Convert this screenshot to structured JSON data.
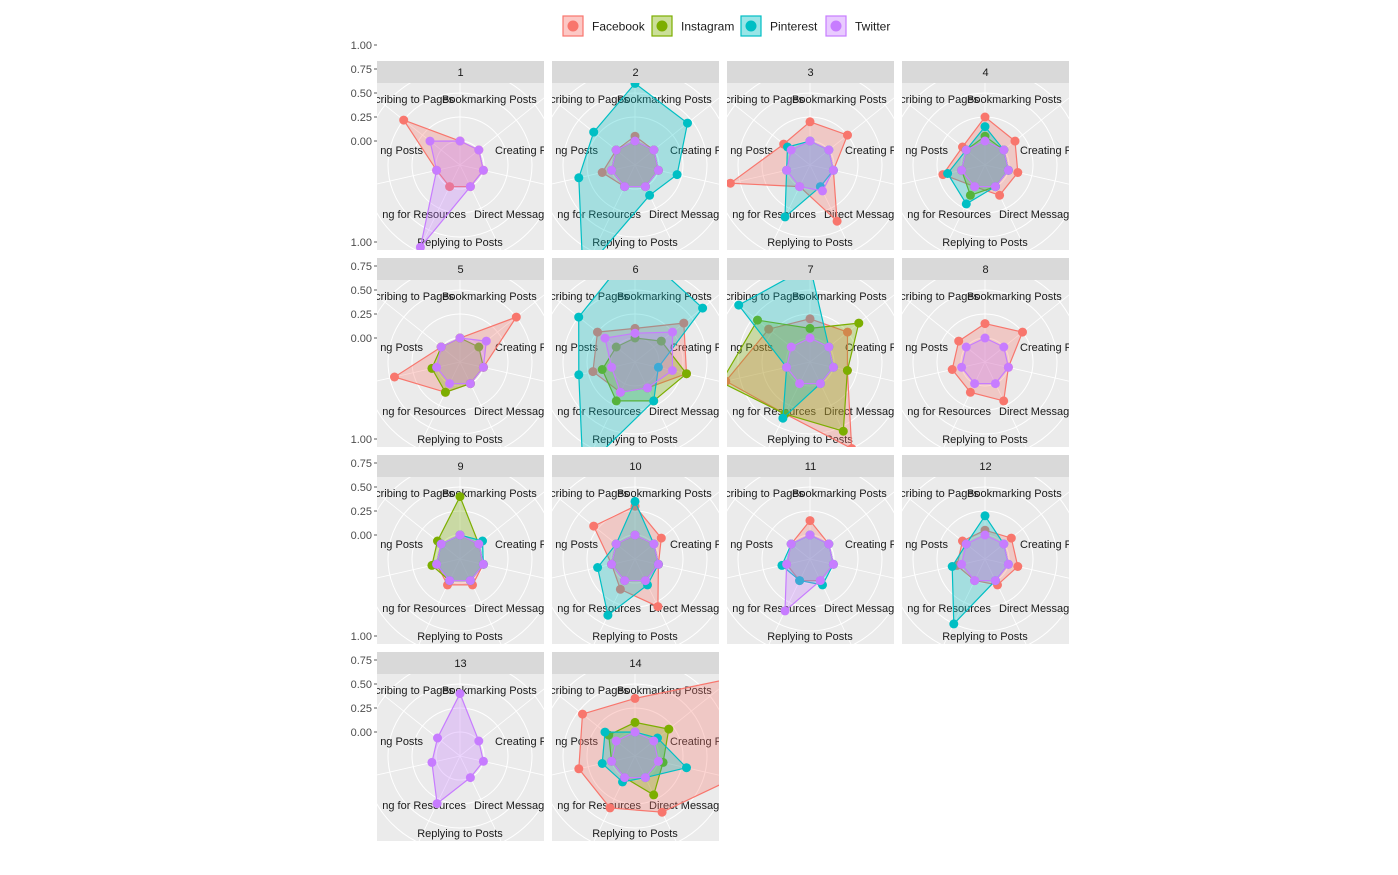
{
  "chart_data": {
    "type": "radar",
    "layout": "facet-wrap",
    "facets": [
      "1",
      "2",
      "3",
      "4",
      "5",
      "6",
      "7",
      "8",
      "9",
      "10",
      "11",
      "12",
      "13",
      "14"
    ],
    "axes": [
      "Bookmarking Posts",
      "Creating Posts",
      "Direct Messaging",
      "Replying to Posts",
      "Searching for Resources",
      "Reading Posts",
      "Subscribing to Pages"
    ],
    "axis_labels_shown": [
      "Bookmarking Posts",
      "Creating Posts",
      "Direct Messag",
      "Replying to Posts",
      "ng for Resources",
      "ng Posts",
      "Subscribing to Pages"
    ],
    "radial_ticks": [
      "1.00",
      "0.75",
      "0.50",
      "0.25",
      "0.00"
    ],
    "rlim": [
      -0.25,
      1.0
    ],
    "legend_position": "top",
    "series": [
      {
        "name": "Facebook",
        "color": "#F8766D"
      },
      {
        "name": "Instagram",
        "color": "#7CAE00"
      },
      {
        "name": "Pinterest",
        "color": "#00BFC4"
      },
      {
        "name": "Twitter",
        "color": "#C77CFF"
      }
    ],
    "values": {
      "1": {
        "Twitter": [
          0,
          0,
          0,
          0,
          0.7,
          0,
          0.15
        ],
        "Facebook": [
          0,
          0,
          0,
          0,
          0,
          0,
          0.5
        ]
      },
      "2": {
        "Facebook": [
          0.05,
          0,
          0,
          0,
          0,
          0.1,
          0
        ],
        "Instagram": [
          0,
          0,
          0,
          0,
          0,
          0,
          0
        ],
        "Pinterest": [
          0.6,
          0.45,
          0.2,
          0.1,
          1.0,
          0.35,
          0.3
        ],
        "Twitter": [
          0,
          0,
          0,
          0,
          0,
          0,
          0
        ]
      },
      "3": {
        "Facebook": [
          0.2,
          0.25,
          0,
          0.4,
          0,
          0.6,
          0.1
        ],
        "Pinterest": [
          0,
          0,
          0,
          0,
          0.35,
          0,
          0.05
        ],
        "Twitter": [
          0,
          0,
          0,
          0.05,
          0,
          0,
          0
        ]
      },
      "4": {
        "Facebook": [
          0.25,
          0.15,
          0.1,
          0.1,
          0,
          0.2,
          0.05
        ],
        "Instagram": [
          0.05,
          0,
          0,
          0,
          0.1,
          0,
          0
        ],
        "Pinterest": [
          0.15,
          0,
          0,
          0,
          0.2,
          0.15,
          0
        ],
        "Twitter": [
          0,
          0,
          0,
          0,
          0,
          0,
          0
        ]
      },
      "5": {
        "Facebook": [
          0,
          0.5,
          0,
          0,
          0.1,
          0.45,
          0
        ],
        "Instagram": [
          0,
          0,
          0,
          0,
          0.1,
          0.05,
          0
        ],
        "Twitter": [
          0,
          0.1,
          0,
          0,
          0,
          0,
          0
        ]
      },
      "6": {
        "Facebook": [
          0.1,
          0.4,
          0.3,
          0.05,
          0.1,
          0.2,
          0.25
        ],
        "Instagram": [
          0,
          0.1,
          0.3,
          0.2,
          0.2,
          0.1,
          0
        ],
        "Pinterest": [
          0.95,
          0.65,
          0,
          0.2,
          1.0,
          0.35,
          0.5
        ],
        "Twitter": [
          0.05,
          0.25,
          0.15,
          0.05,
          0.1,
          0,
          0.15
        ]
      },
      "7": {
        "Facebook": [
          0.2,
          0.25,
          0.15,
          0.75,
          0.35,
          0.65,
          0.3
        ],
        "Instagram": [
          0.1,
          0.4,
          0.15,
          0.55,
          0.35,
          0.7,
          0.45
        ],
        "Pinterest": [
          0.75,
          0,
          0,
          0,
          0.4,
          0,
          0.7
        ],
        "Twitter": [
          0,
          0,
          0,
          0,
          0,
          0,
          0
        ]
      },
      "8": {
        "Facebook": [
          0.15,
          0.25,
          0,
          0.2,
          0.1,
          0.1,
          0.1
        ],
        "Twitter": [
          0,
          0,
          0,
          0,
          0,
          0,
          0
        ]
      },
      "9": {
        "Instagram": [
          0.4,
          0,
          0,
          0,
          0,
          0.05,
          0.05
        ],
        "Pinterest": [
          0,
          0.05,
          0,
          0,
          0,
          0,
          0
        ],
        "Facebook": [
          0,
          0,
          0,
          0.05,
          0.05,
          0,
          0
        ],
        "Twitter": [
          0,
          0,
          0,
          0,
          0,
          0,
          0
        ]
      },
      "10": {
        "Facebook": [
          0.3,
          0.1,
          0,
          0.3,
          0.1,
          0,
          0.3
        ],
        "Pinterest": [
          0.35,
          0,
          0,
          0.05,
          0.4,
          0.15,
          0
        ],
        "Instagram": [
          0,
          0,
          0,
          0,
          0,
          0,
          0
        ],
        "Twitter": [
          0,
          0,
          0,
          0,
          0,
          0,
          0
        ]
      },
      "11": {
        "Facebook": [
          0.15,
          0,
          0,
          0,
          0,
          0,
          0
        ],
        "Pinterest": [
          0,
          0,
          0,
          0.05,
          0,
          0.05,
          0
        ],
        "Twitter": [
          0,
          0,
          0,
          0,
          0.35,
          0,
          0
        ]
      },
      "12": {
        "Facebook": [
          0.05,
          0.1,
          0.1,
          0.05,
          0,
          0.05,
          0.05
        ],
        "Pinterest": [
          0.2,
          0,
          0,
          0,
          0.5,
          0.1,
          0
        ],
        "Twitter": [
          0,
          0,
          0,
          0,
          0,
          0,
          0
        ]
      },
      "13": {
        "Twitter": [
          0.4,
          0,
          0,
          0,
          0.3,
          0.05,
          0.05
        ]
      },
      "14": {
        "Facebook": [
          0.35,
          1.05,
          0.8,
          0.4,
          0.35,
          0.35,
          0.45
        ],
        "Instagram": [
          0.1,
          0.2,
          0.05,
          0.2,
          0,
          0,
          0.1
        ],
        "Pinterest": [
          0,
          0.05,
          0.3,
          0,
          0.05,
          0.1,
          0.15
        ],
        "Twitter": [
          0,
          0,
          0,
          0,
          0,
          0,
          0
        ]
      }
    }
  }
}
